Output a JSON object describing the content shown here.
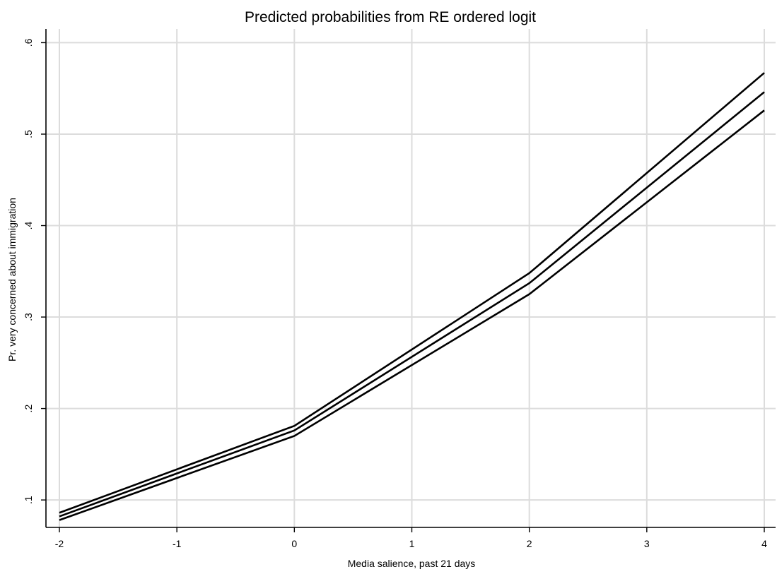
{
  "chart_data": {
    "type": "line",
    "title": "Predicted probabilities from RE ordered logit",
    "xlabel": "Media salience,  past 21 days",
    "ylabel": "Pr. very concerned about immigration",
    "x": [
      -2,
      0,
      2,
      4
    ],
    "xlim": [
      -2,
      4
    ],
    "ylim": [
      0.07,
      0.615
    ],
    "xticks": [
      -2,
      -1,
      0,
      1,
      2,
      3,
      4
    ],
    "xtick_labels": [
      "-2",
      "-1",
      "0",
      "1",
      "2",
      "3",
      "4"
    ],
    "yticks": [
      0.1,
      0.2,
      0.3,
      0.4,
      0.5,
      0.6
    ],
    "ytick_labels": [
      ".1",
      ".2",
      ".3",
      ".4",
      ".5",
      ".6"
    ],
    "grid": true,
    "line_color": "#000000",
    "grid_color": "#dcdcdc",
    "series": [
      {
        "values": [
          0.086,
          0.181,
          0.348,
          0.567
        ]
      },
      {
        "values": [
          0.082,
          0.176,
          0.337,
          0.546
        ]
      },
      {
        "values": [
          0.078,
          0.17,
          0.325,
          0.526
        ]
      }
    ]
  }
}
